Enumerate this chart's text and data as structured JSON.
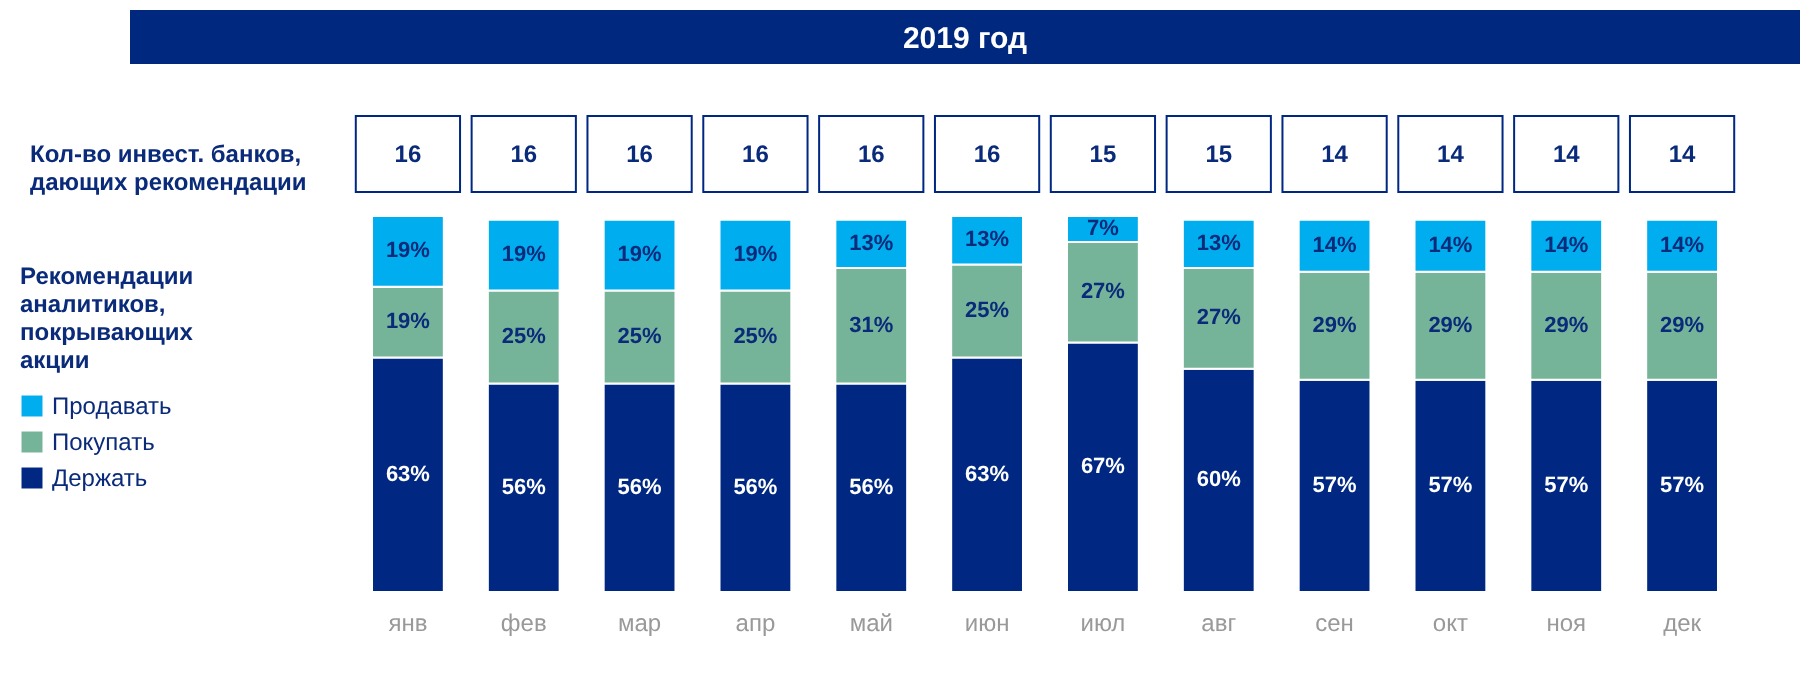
{
  "chart_data": [
    {
      "type": "other",
      "title": "2019 год",
      "ylabel": "Кол-во инвест. банков, дающих рекомендации",
      "data_labels": true,
      "categories": [
        null,
        null,
        null,
        null,
        null,
        null,
        null,
        null,
        null,
        null,
        null,
        null
      ],
      "values": [
        16,
        16,
        16,
        16,
        16,
        16,
        15,
        15,
        14,
        14,
        14,
        14
      ]
    },
    {
      "type": "bar",
      "stacked": true,
      "legend": "left",
      "legend_title": "Рекомендации аналитиков, покрывающих акции",
      "categories": [
        "янв",
        "фев",
        "мар",
        "апр",
        "май",
        "июн",
        "июл",
        "авг",
        "сен",
        "окт",
        "ноя",
        "дек"
      ],
      "series": [
        {
          "name": "Держать",
          "color": "#002882",
          "values": [
            63,
            56,
            56,
            56,
            56,
            63,
            67,
            60,
            57,
            57,
            57,
            57
          ],
          "value_labels": [
            "63%",
            "56%",
            "56%",
            "56%",
            "56%",
            "63%",
            "67%",
            "60%",
            "57%",
            "57%",
            "57%",
            "57%"
          ]
        },
        {
          "name": "Покупать",
          "color": "#76b49a",
          "values": [
            19,
            25,
            25,
            25,
            31,
            25,
            27,
            27,
            29,
            29,
            29,
            29
          ],
          "value_labels": [
            "19%",
            "25%",
            "25%",
            "25%",
            "31%",
            "25%",
            "27%",
            "27%",
            "29%",
            "29%",
            "29%",
            "29%"
          ]
        },
        {
          "name": "Продавать",
          "color": "#00aeef",
          "values": [
            19,
            19,
            19,
            19,
            13,
            13,
            7,
            13,
            14,
            14,
            14,
            14
          ],
          "value_labels": [
            "19%",
            "19%",
            "19%",
            "19%",
            "13%",
            "13%",
            "7%",
            "13%",
            "14%",
            "14%",
            "14%",
            "14%"
          ]
        }
      ]
    }
  ]
}
